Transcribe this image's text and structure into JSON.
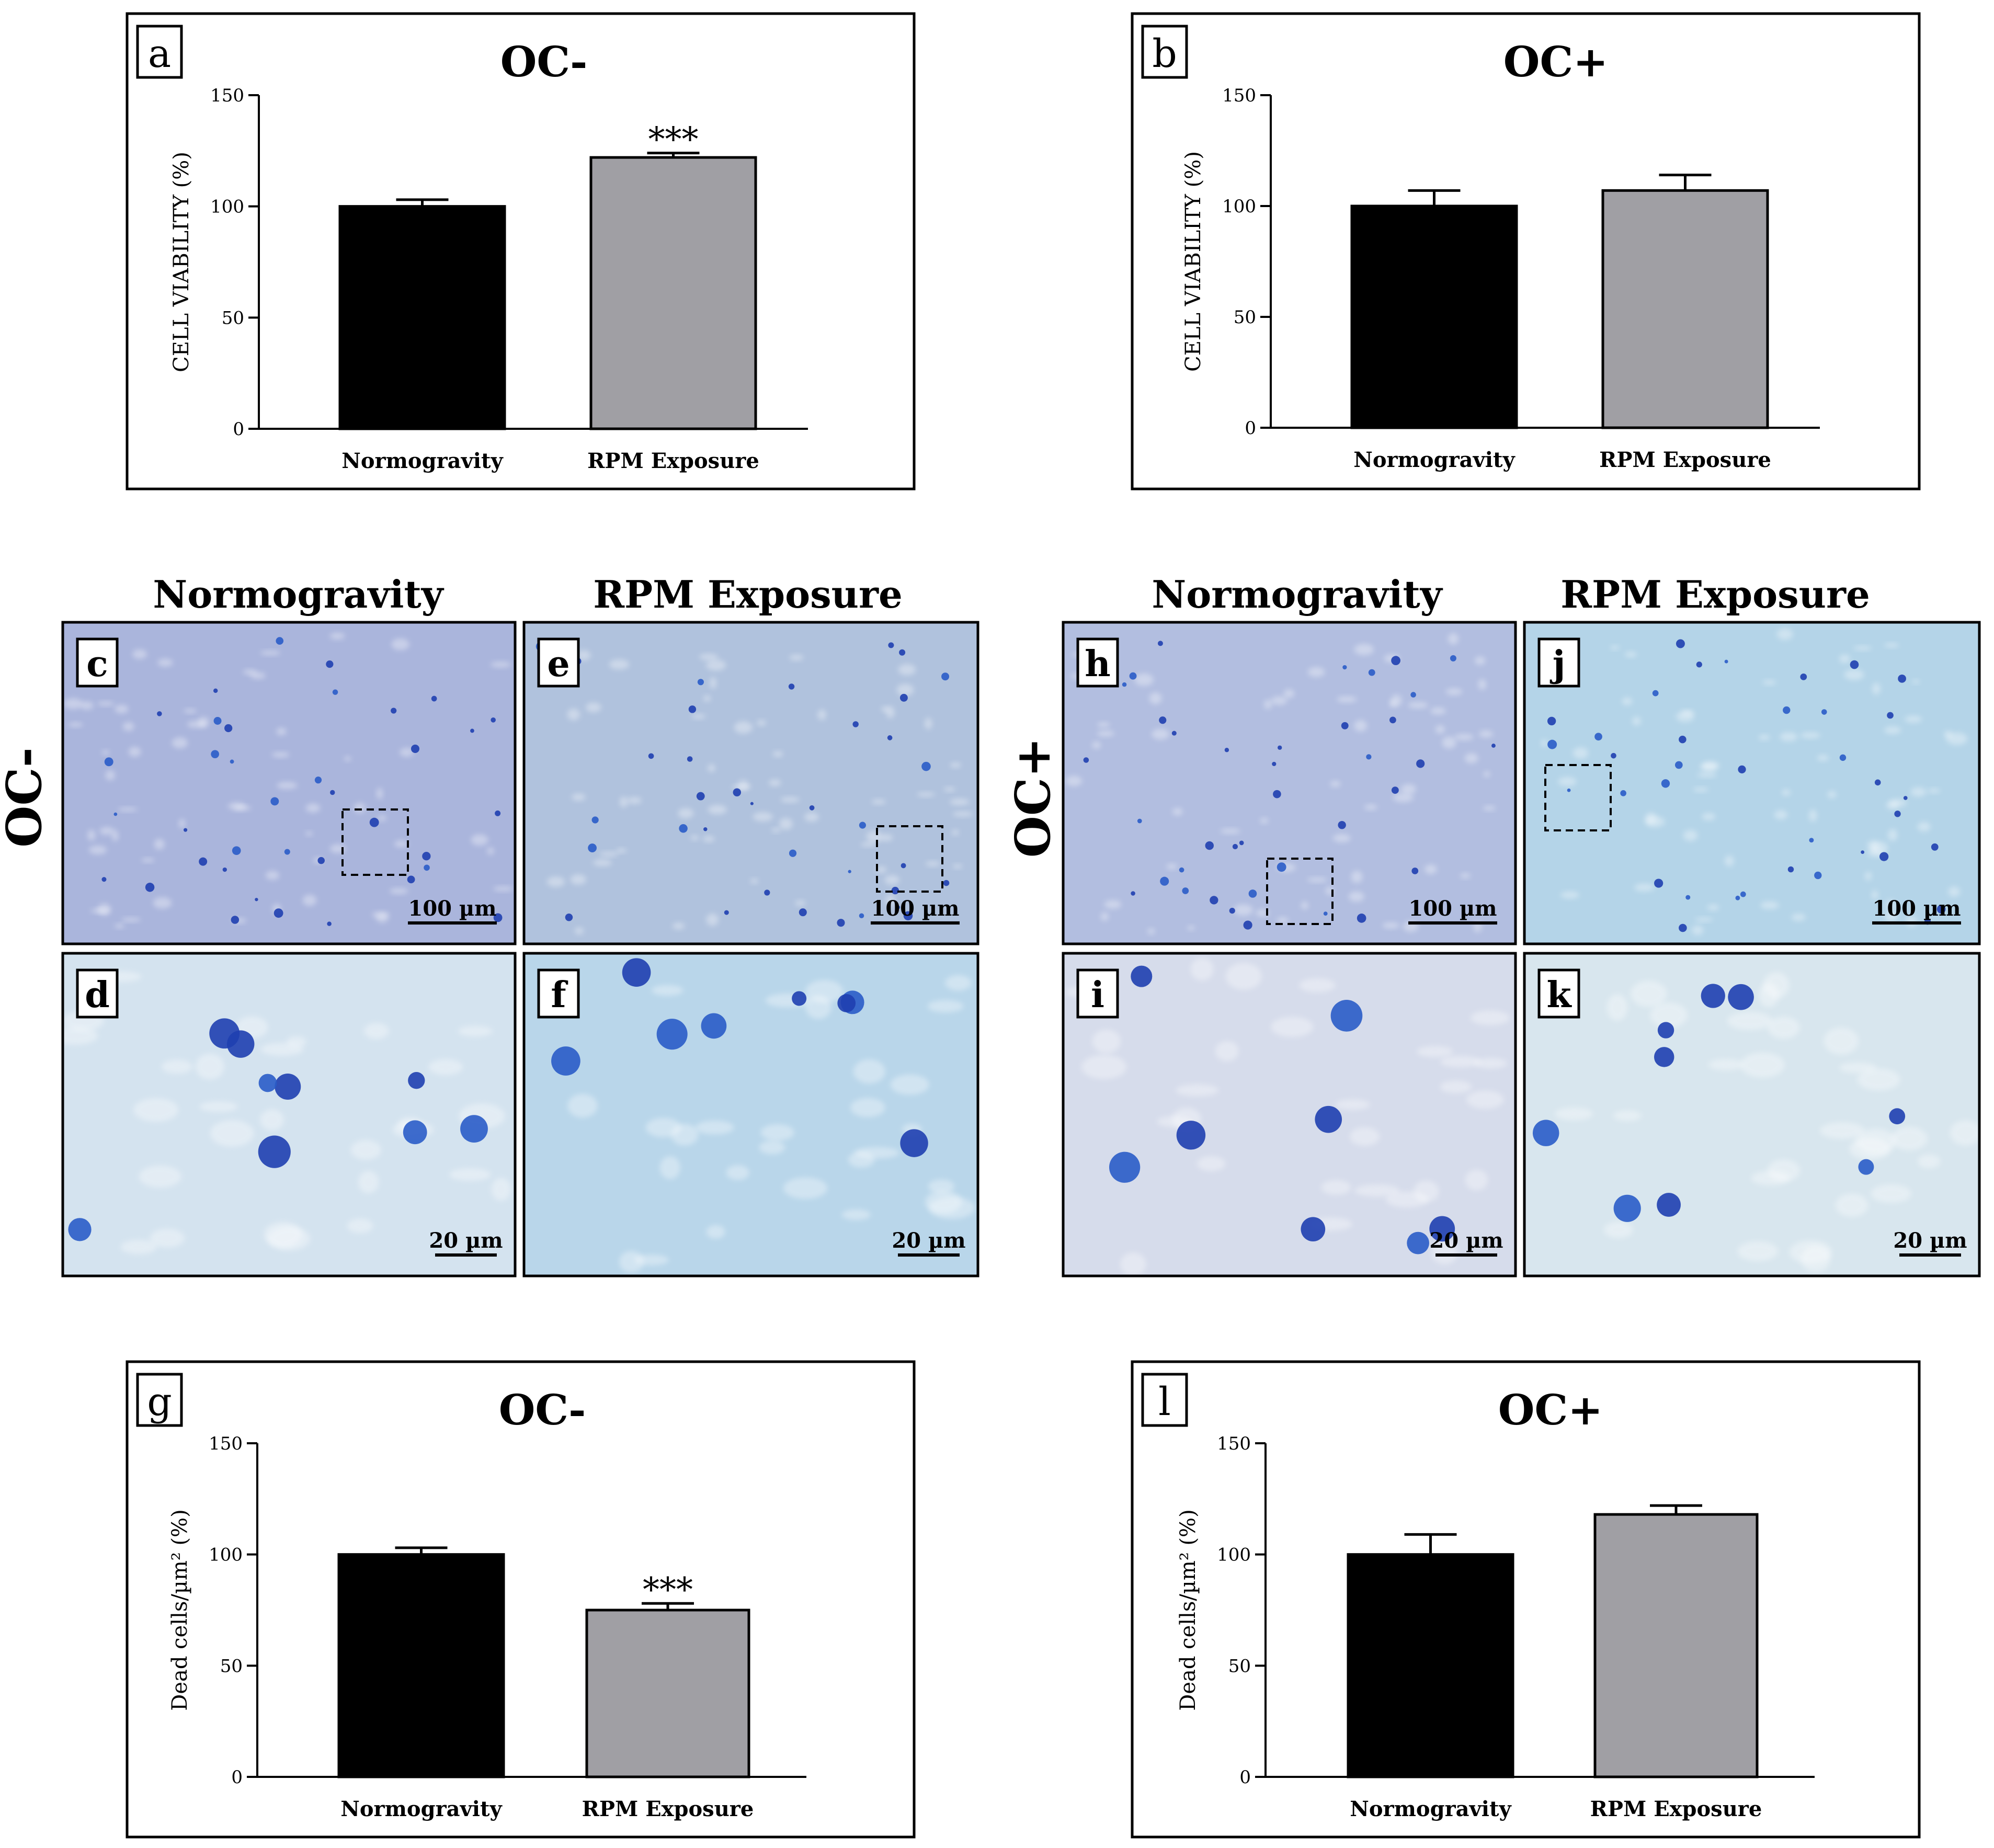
{
  "chart_data": [
    {
      "panel": "a",
      "type": "bar",
      "title": "OC-",
      "ylabel": "CELL VIABILITY (%)",
      "categories": [
        "Normogravity",
        "RPM Exposure"
      ],
      "values": [
        100,
        122
      ],
      "errors": [
        3,
        2
      ],
      "significance": [
        "",
        "***"
      ],
      "colors": [
        "#000000",
        "#a09fa4"
      ],
      "ylim": [
        0,
        150
      ],
      "yticks": [
        "0",
        "50",
        "100",
        "150"
      ]
    },
    {
      "panel": "b",
      "type": "bar",
      "title": "OC+",
      "ylabel": "CELL VIABILITY (%)",
      "categories": [
        "Normogravity",
        "RPM Exposure"
      ],
      "values": [
        100,
        107
      ],
      "errors": [
        7,
        7
      ],
      "significance": [
        "",
        ""
      ],
      "colors": [
        "#000000",
        "#a09fa4"
      ],
      "ylim": [
        0,
        150
      ],
      "yticks": [
        "0",
        "50",
        "100",
        "150"
      ]
    },
    {
      "panel": "g",
      "type": "bar",
      "title": "OC-",
      "ylabel": "Dead cells/µm² (%)",
      "categories": [
        "Normogravity",
        "RPM Exposure"
      ],
      "values": [
        100,
        75
      ],
      "errors": [
        3,
        3
      ],
      "significance": [
        "",
        "***"
      ],
      "colors": [
        "#000000",
        "#a09fa4"
      ],
      "ylim": [
        0,
        150
      ],
      "yticks": [
        "0",
        "50",
        "100",
        "150"
      ]
    },
    {
      "panel": "l",
      "type": "bar",
      "title": "OC+",
      "ylabel": "Dead cells/µm² (%)",
      "categories": [
        "Normogravity",
        "RPM Exposure"
      ],
      "values": [
        100,
        118
      ],
      "errors": [
        9,
        4
      ],
      "significance": [
        "",
        ""
      ],
      "colors": [
        "#000000",
        "#a09fa4"
      ],
      "ylim": [
        0,
        150
      ],
      "yticks": [
        "0",
        "50",
        "100",
        "150"
      ]
    }
  ],
  "micrographs": {
    "column_headers": [
      "Normogravity",
      "RPM Exposure",
      "Normogravity",
      "RPM Exposure"
    ],
    "row_labels": [
      "OC-",
      "OC+"
    ],
    "panels": [
      {
        "letter": "c",
        "scale": "100 µm",
        "tint": "#aab5dc"
      },
      {
        "letter": "e",
        "scale": "100 µm",
        "tint": "#b0c2dd"
      },
      {
        "letter": "h",
        "scale": "100 µm",
        "tint": "#b2bee0"
      },
      {
        "letter": "j",
        "scale": "100 µm",
        "tint": "#b4d4e8"
      },
      {
        "letter": "d",
        "scale": "20 µm",
        "tint": "#d4e3ef"
      },
      {
        "letter": "f",
        "scale": "20 µm",
        "tint": "#b9d6ea"
      },
      {
        "letter": "i",
        "scale": "20 µm",
        "tint": "#d6dceb"
      },
      {
        "letter": "k",
        "scale": "20 µm",
        "tint": "#d8e6ee"
      }
    ]
  }
}
